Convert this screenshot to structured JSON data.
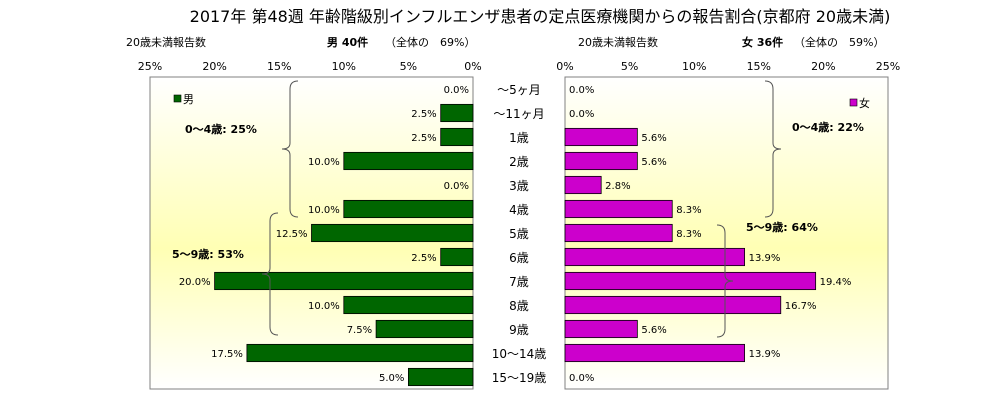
{
  "title": "2017年 第48週 年齢階級別インフルエンザ患者の定点医療機関からの報告割合(京都府 20歳未満)",
  "categories": [
    "～5ヶ月",
    "～11ヶ月",
    "1歳",
    "2歳",
    "3歳",
    "4歳",
    "5歳",
    "6歳",
    "7歳",
    "8歳",
    "9歳",
    "10～14歳",
    "15～19歳"
  ],
  "colors": {
    "male": "#006600",
    "female": "#CC00CC"
  },
  "chart_data": [
    {
      "type": "bar",
      "orientation": "horizontal",
      "side": "left",
      "header_left": "20歳未満報告数",
      "header_bold": "男 40件",
      "header_right": "（全体の　69%）",
      "legend": "男",
      "xlim": [
        0,
        25
      ],
      "x_direction": "reversed",
      "ticks": [
        25,
        20,
        15,
        10,
        5,
        0
      ],
      "tick_labels": [
        "25%",
        "20%",
        "15%",
        "10%",
        "5%",
        "0%"
      ],
      "values": [
        0.0,
        2.5,
        2.5,
        10.0,
        0.0,
        10.0,
        12.5,
        2.5,
        20.0,
        10.0,
        7.5,
        17.5,
        5.0
      ],
      "labels": [
        "0.0%",
        "2.5%",
        "2.5%",
        "10.0%",
        "0.0%",
        "10.0%",
        "12.5%",
        "2.5%",
        "20.0%",
        "10.0%",
        "7.5%",
        "17.5%",
        "5.0%"
      ],
      "annotations": [
        {
          "text": "0～4歳: 25%",
          "from": 0,
          "to": 5
        },
        {
          "text": "5～9歳: 53%",
          "from": 6,
          "to": 10
        }
      ]
    },
    {
      "type": "bar",
      "orientation": "horizontal",
      "side": "right",
      "header_left": "20歳未満報告数",
      "header_bold": "女 36件",
      "header_right": "（全体の　59%）",
      "legend": "女",
      "xlim": [
        0,
        25
      ],
      "ticks": [
        0,
        5,
        10,
        15,
        20,
        25
      ],
      "tick_labels": [
        "0%",
        "5%",
        "10%",
        "15%",
        "20%",
        "25%"
      ],
      "values": [
        0.0,
        0.0,
        5.6,
        5.6,
        2.8,
        8.3,
        8.3,
        13.9,
        19.4,
        16.7,
        5.6,
        13.9,
        0.0
      ],
      "labels": [
        "0.0%",
        "0.0%",
        "5.6%",
        "5.6%",
        "2.8%",
        "8.3%",
        "8.3%",
        "13.9%",
        "19.4%",
        "16.7%",
        "5.6%",
        "13.9%",
        "0.0%"
      ],
      "annotations": [
        {
          "text": "0～4歳: 22%",
          "from": 0,
          "to": 5
        },
        {
          "text": "5～9歳: 64%",
          "from": 6,
          "to": 10
        }
      ]
    }
  ]
}
